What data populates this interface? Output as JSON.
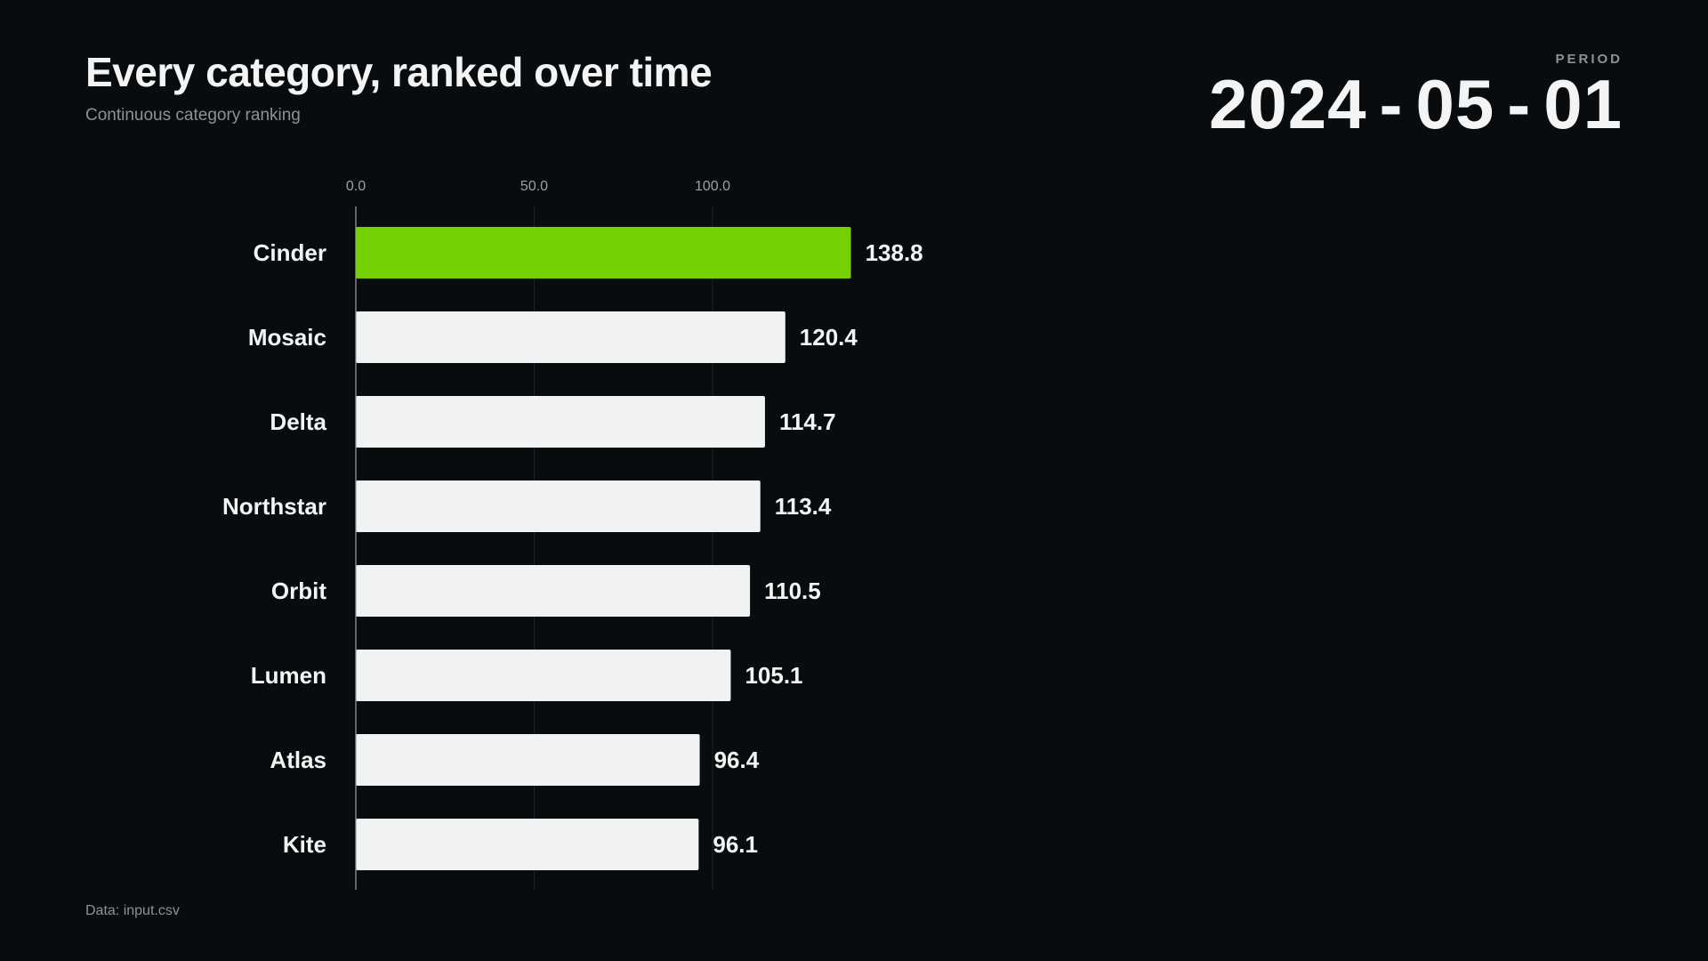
{
  "header": {
    "title": "Every category, ranked over time",
    "subtitle": "Continuous category ranking",
    "period_label": "PERIOD",
    "period_value": "2024-05-01"
  },
  "footer": {
    "source": "Data: input.csv"
  },
  "colors": {
    "background": "#080c0f",
    "highlight_bar": "#74d000",
    "default_bar": "#f1f3f2",
    "gridline": "#1c2226",
    "axis_line": "#9aa0a4"
  },
  "chart_data": {
    "type": "bar",
    "orientation": "horizontal",
    "categories": [
      "Cinder",
      "Mosaic",
      "Delta",
      "Northstar",
      "Orbit",
      "Lumen",
      "Atlas",
      "Kite"
    ],
    "values": [
      138.8,
      120.4,
      114.7,
      113.4,
      110.5,
      105.1,
      96.4,
      96.1
    ],
    "value_labels": [
      "138.8",
      "120.4",
      "114.7",
      "113.4",
      "110.5",
      "105.1",
      "96.4",
      "96.1"
    ],
    "highlight_category": "Cinder",
    "xlim": [
      0,
      190
    ],
    "x_ticks": [
      0,
      50,
      100
    ],
    "x_tick_labels": [
      "0.0",
      "50.0",
      "100.0"
    ],
    "tick_position": "top",
    "grid": true
  }
}
